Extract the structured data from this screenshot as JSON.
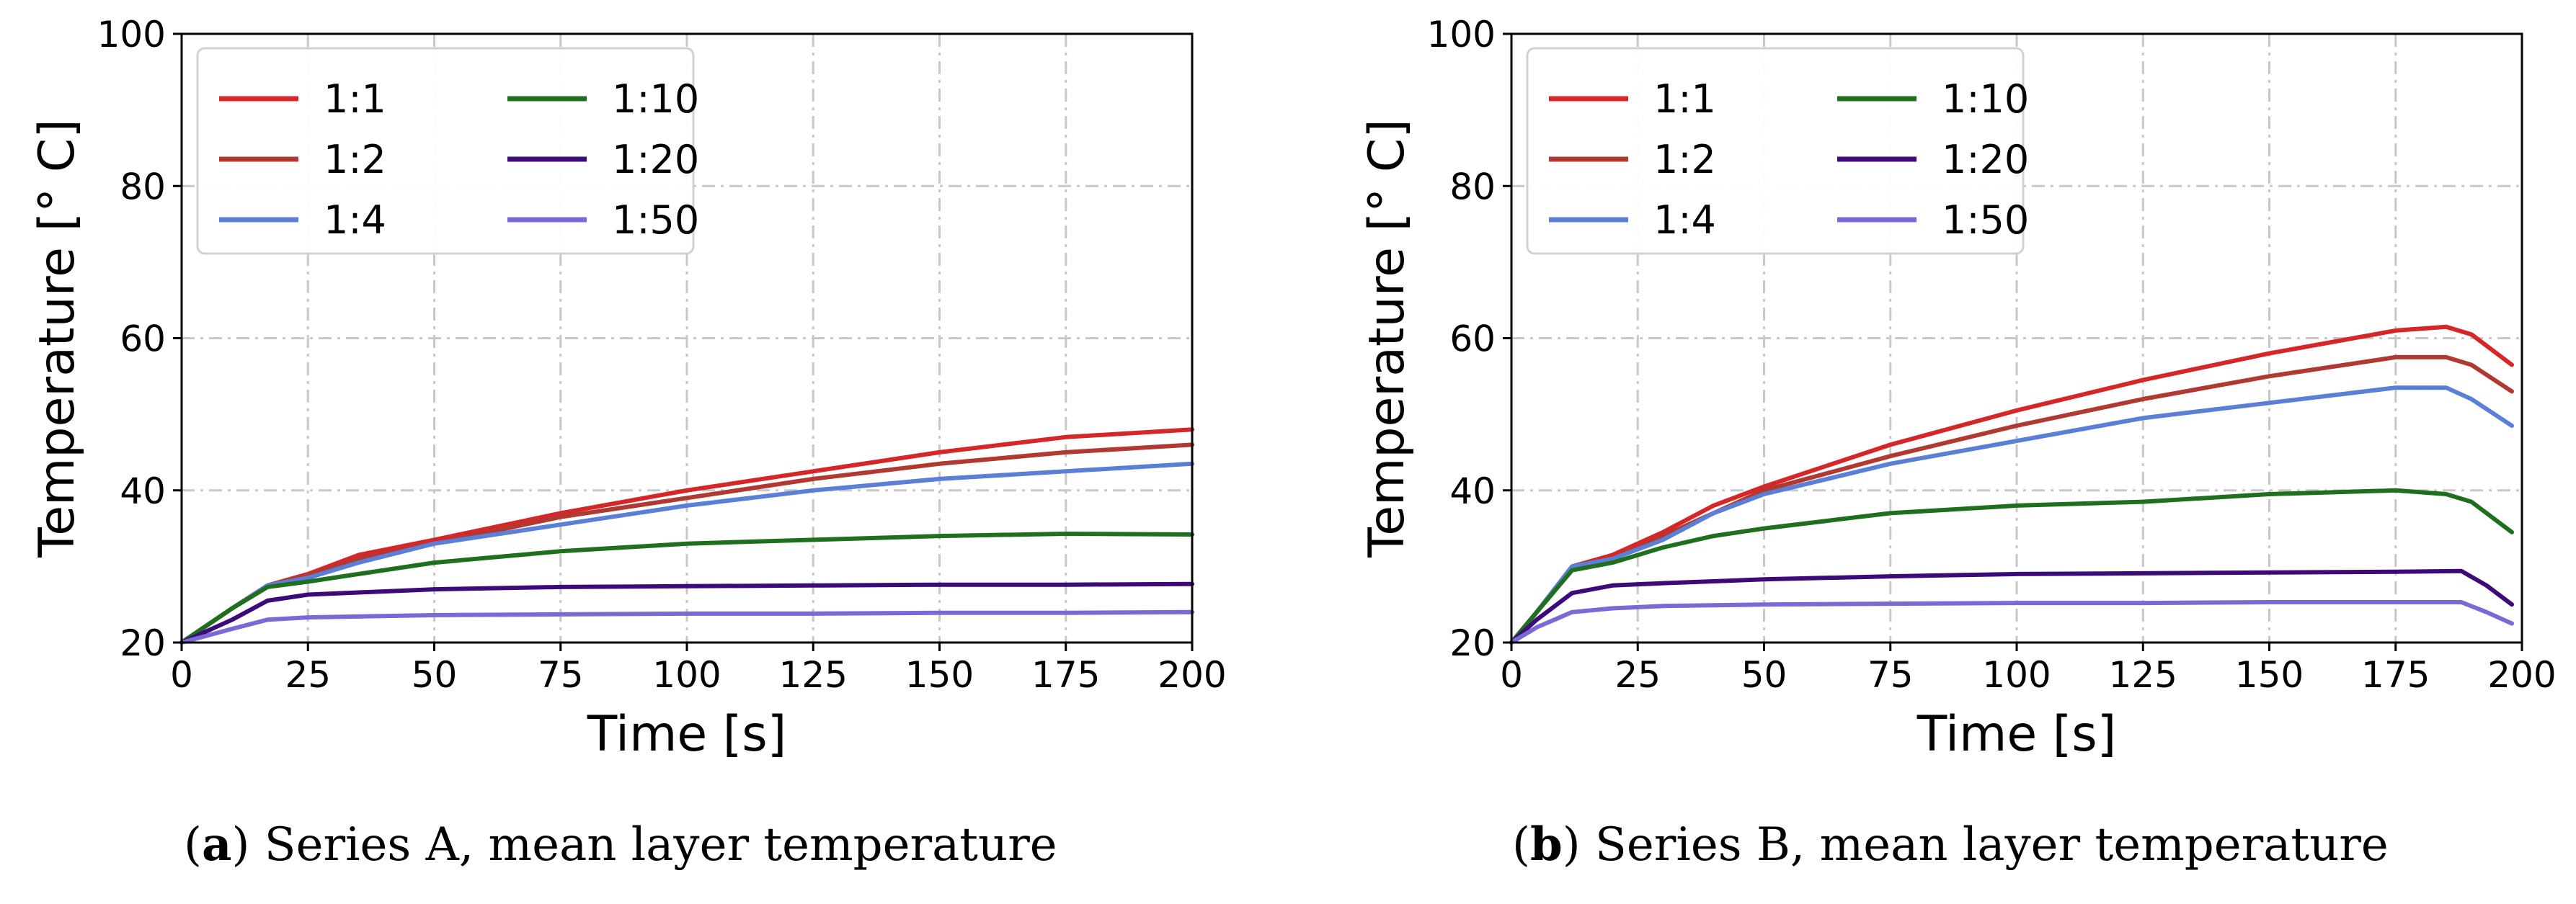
{
  "figure_captions": [
    {
      "label": "a",
      "text": "Series A, mean layer temperature"
    },
    {
      "label": "b",
      "text": "Series B, mean layer temperature"
    }
  ],
  "chart_data": [
    {
      "type": "line",
      "title": "",
      "xlabel": "Time [s]",
      "ylabel": "Temperature [° C]",
      "xlim": [
        0,
        200
      ],
      "ylim": [
        20,
        100
      ],
      "xticks": [
        0,
        25,
        50,
        75,
        100,
        125,
        150,
        175,
        200
      ],
      "yticks": [
        20,
        40,
        60,
        80,
        100
      ],
      "grid": true,
      "legend_position": "top-left",
      "series": [
        {
          "name": "1:1",
          "color": "#d62728",
          "x": [
            0,
            10,
            17,
            25,
            35,
            50,
            75,
            100,
            125,
            150,
            175,
            200
          ],
          "y": [
            20,
            24.5,
            27.5,
            29,
            31.5,
            33.5,
            37,
            40,
            42.5,
            45,
            47,
            48
          ]
        },
        {
          "name": "1:2",
          "color": "#b03a32",
          "x": [
            0,
            10,
            17,
            25,
            35,
            50,
            75,
            100,
            125,
            150,
            175,
            200
          ],
          "y": [
            20,
            24.5,
            27.5,
            28.8,
            31,
            33,
            36.5,
            39,
            41.5,
            43.5,
            45,
            46
          ]
        },
        {
          "name": "1:4",
          "color": "#5b7fd6",
          "x": [
            0,
            10,
            17,
            25,
            35,
            50,
            75,
            100,
            125,
            150,
            175,
            200
          ],
          "y": [
            20,
            24.5,
            27.5,
            28.5,
            30.5,
            33,
            35.5,
            38,
            40,
            41.5,
            42.5,
            43.5
          ]
        },
        {
          "name": "1:10",
          "color": "#1f6f1f",
          "x": [
            0,
            10,
            17,
            25,
            35,
            50,
            75,
            100,
            125,
            150,
            175,
            200
          ],
          "y": [
            20,
            24.5,
            27.3,
            28,
            29,
            30.5,
            32,
            33,
            33.5,
            34,
            34.3,
            34.2
          ]
        },
        {
          "name": "1:20",
          "color": "#3d0a7a",
          "x": [
            0,
            10,
            17,
            25,
            50,
            75,
            100,
            125,
            150,
            175,
            200
          ],
          "y": [
            20,
            23,
            25.5,
            26.3,
            27,
            27.3,
            27.4,
            27.5,
            27.6,
            27.6,
            27.7
          ]
        },
        {
          "name": "1:50",
          "color": "#7b6ad6",
          "x": [
            0,
            10,
            17,
            25,
            50,
            75,
            100,
            125,
            150,
            175,
            200
          ],
          "y": [
            20,
            21.8,
            23,
            23.3,
            23.6,
            23.7,
            23.8,
            23.8,
            23.9,
            23.9,
            24
          ]
        }
      ]
    },
    {
      "type": "line",
      "title": "",
      "xlabel": "Time [s]",
      "ylabel": "Temperature [° C]",
      "xlim": [
        0,
        200
      ],
      "ylim": [
        20,
        100
      ],
      "xticks": [
        0,
        25,
        50,
        75,
        100,
        125,
        150,
        175,
        200
      ],
      "yticks": [
        20,
        40,
        60,
        80,
        100
      ],
      "grid": true,
      "legend_position": "top-left",
      "series": [
        {
          "name": "1:1",
          "color": "#d62728",
          "x": [
            0,
            5,
            12,
            20,
            30,
            40,
            50,
            75,
            100,
            125,
            150,
            175,
            185,
            190,
            198
          ],
          "y": [
            20,
            24,
            30,
            31.5,
            34.5,
            38,
            40.5,
            46,
            50.5,
            54.5,
            58,
            61,
            61.5,
            60.5,
            56.5
          ]
        },
        {
          "name": "1:2",
          "color": "#b03a32",
          "x": [
            0,
            5,
            12,
            20,
            30,
            40,
            50,
            75,
            100,
            125,
            150,
            175,
            185,
            190,
            198
          ],
          "y": [
            20,
            24,
            30,
            31,
            34,
            37,
            40,
            44.5,
            48.5,
            52,
            55,
            57.5,
            57.5,
            56.5,
            53
          ]
        },
        {
          "name": "1:4",
          "color": "#5b7fd6",
          "x": [
            0,
            5,
            12,
            20,
            30,
            40,
            50,
            75,
            100,
            125,
            150,
            175,
            185,
            190,
            198
          ],
          "y": [
            20,
            24,
            30,
            31,
            33.5,
            37,
            39.5,
            43.5,
            46.5,
            49.5,
            51.5,
            53.5,
            53.5,
            52,
            48.5
          ]
        },
        {
          "name": "1:10",
          "color": "#1f6f1f",
          "x": [
            0,
            5,
            12,
            20,
            30,
            40,
            50,
            75,
            100,
            125,
            150,
            175,
            185,
            190,
            198
          ],
          "y": [
            20,
            24,
            29.5,
            30.5,
            32.5,
            34,
            35,
            37,
            38,
            38.5,
            39.5,
            40,
            39.5,
            38.5,
            34.5
          ]
        },
        {
          "name": "1:20",
          "color": "#3d0a7a",
          "x": [
            0,
            5,
            12,
            20,
            30,
            50,
            75,
            100,
            125,
            150,
            175,
            188,
            193,
            198
          ],
          "y": [
            20,
            23,
            26.5,
            27.5,
            27.8,
            28.3,
            28.7,
            29,
            29.1,
            29.2,
            29.3,
            29.4,
            27.5,
            25
          ]
        },
        {
          "name": "1:50",
          "color": "#7b6ad6",
          "x": [
            0,
            5,
            12,
            20,
            30,
            50,
            75,
            100,
            125,
            150,
            175,
            188,
            193,
            198
          ],
          "y": [
            20,
            22,
            24,
            24.5,
            24.8,
            25,
            25.1,
            25.2,
            25.2,
            25.3,
            25.3,
            25.3,
            24,
            22.5
          ]
        }
      ]
    }
  ]
}
